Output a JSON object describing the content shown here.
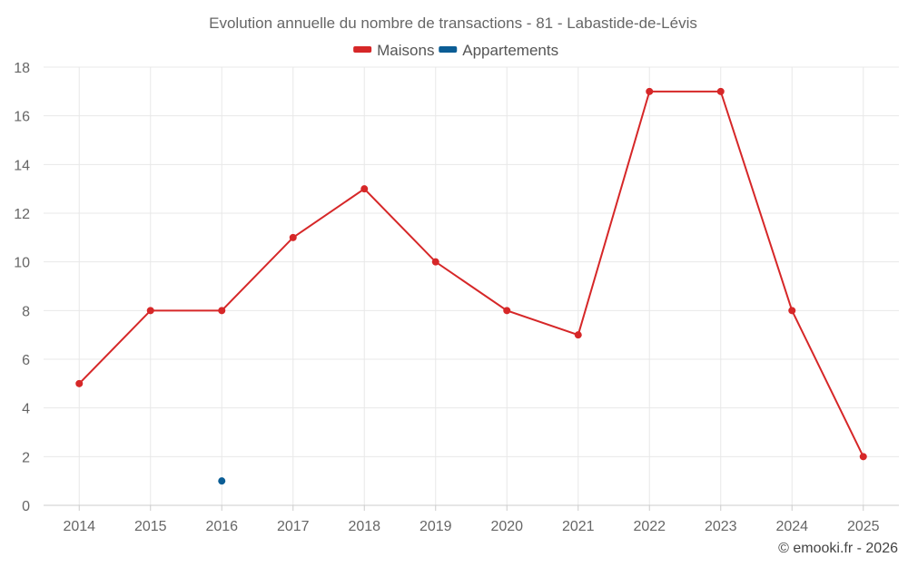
{
  "chart_data": {
    "type": "line",
    "title": "Evolution annuelle du nombre de transactions - 81 - Labastide-de-Lévis",
    "categories": [
      "2014",
      "2015",
      "2016",
      "2017",
      "2018",
      "2019",
      "2020",
      "2021",
      "2022",
      "2023",
      "2024",
      "2025"
    ],
    "series": [
      {
        "name": "Maisons",
        "color": "#d62728",
        "values": [
          5,
          8,
          8,
          11,
          13,
          10,
          8,
          7,
          17,
          17,
          8,
          2
        ]
      },
      {
        "name": "Appartements",
        "color": "#0b5d95",
        "values": [
          null,
          null,
          1,
          null,
          null,
          null,
          null,
          null,
          null,
          null,
          null,
          null
        ]
      }
    ],
    "ylim": [
      0,
      18
    ],
    "yticks": [
      0,
      2,
      4,
      6,
      8,
      10,
      12,
      14,
      16,
      18
    ],
    "grid": true,
    "legend": "top-center",
    "credit": "© emooki.fr - 2026"
  }
}
